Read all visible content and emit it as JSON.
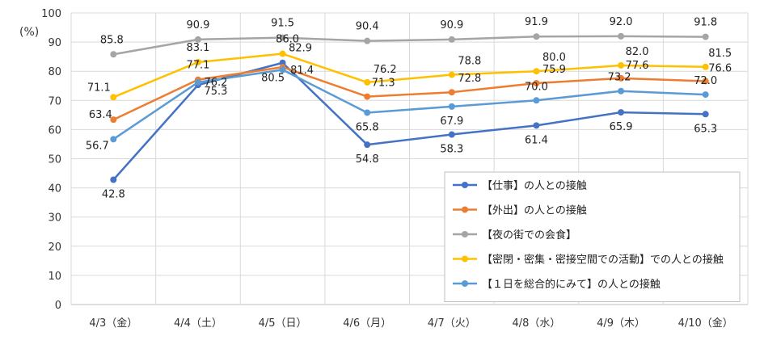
{
  "chart_data": {
    "type": "line",
    "ylabel": "(%)",
    "ylim": [
      0,
      100
    ],
    "yticks": [
      0,
      10,
      20,
      30,
      40,
      50,
      60,
      70,
      80,
      90,
      100
    ],
    "grid": "horizontal",
    "legend_position": "bottom-right",
    "categories": [
      "4/3（金）",
      "4/4（土）",
      "4/5（日）",
      "4/6（月）",
      "4/7（火）",
      "4/8（水）",
      "4/9（木）",
      "4/10（金）"
    ],
    "series": [
      {
        "name": "【仕事】の人との接触",
        "color": "#4472C4",
        "values": [
          42.8,
          75.3,
          82.9,
          54.8,
          58.3,
          61.4,
          65.9,
          65.3
        ]
      },
      {
        "name": "【外出】の人との接触",
        "color": "#ED7D31",
        "values": [
          63.4,
          77.1,
          81.4,
          71.3,
          72.8,
          75.9,
          77.6,
          76.6
        ]
      },
      {
        "name": "【夜の街での会食】",
        "color": "#A5A5A5",
        "values": [
          85.8,
          90.9,
          91.5,
          90.4,
          90.9,
          91.9,
          92.0,
          91.8
        ]
      },
      {
        "name": "【密閉・密集・密接空間での活動】での人との接触",
        "color": "#FFC000",
        "values": [
          71.1,
          83.1,
          86.0,
          76.2,
          78.8,
          80.0,
          82.0,
          81.5
        ]
      },
      {
        "name": "【１日を総合的にみて】の人との接触",
        "color": "#5B9BD5",
        "values": [
          56.7,
          76.2,
          80.5,
          65.8,
          67.9,
          70.0,
          73.2,
          72.0
        ]
      }
    ]
  }
}
